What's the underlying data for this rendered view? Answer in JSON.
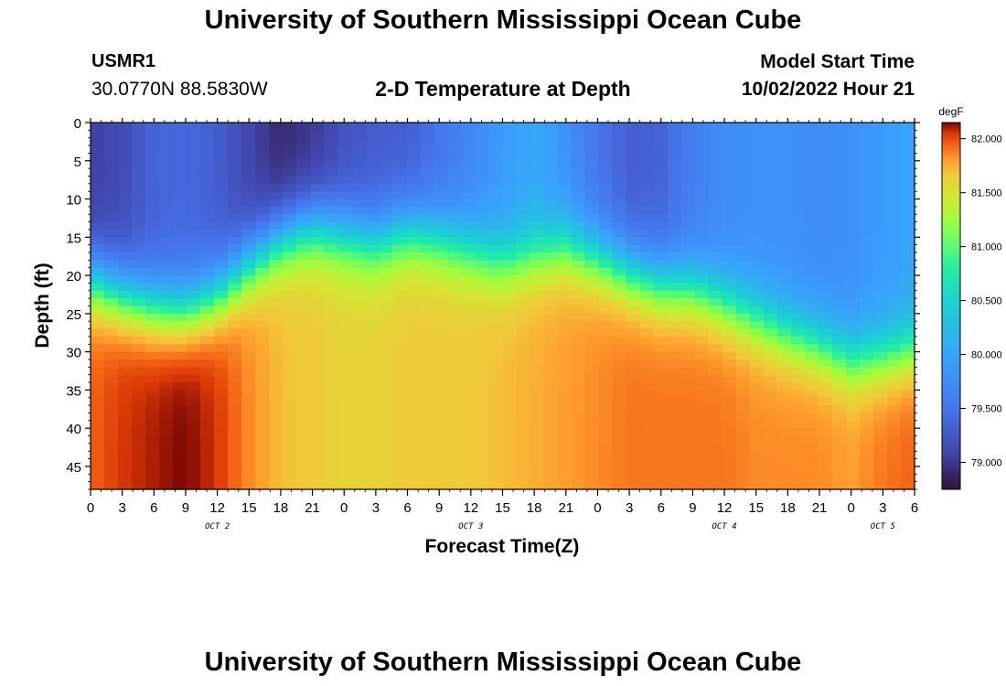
{
  "header": {
    "title": "University of Southern Mississippi Ocean Cube",
    "station_id": "USMR1",
    "station_coords": "30.0770N  88.5830W",
    "subtitle": "2-D Temperature at Depth",
    "model_start_label": "Model Start Time",
    "model_start_value": "10/02/2022 Hour 21"
  },
  "footer": {
    "title": "University of Southern Mississippi Ocean Cube"
  },
  "chart_data": {
    "type": "heatmap",
    "title": "2-D Temperature at Depth",
    "xlabel": "Forecast Time(Z)",
    "ylabel": "Depth (ft)",
    "x_ticks": [
      "0",
      "3",
      "6",
      "9",
      "12",
      "15",
      "18",
      "21",
      "0",
      "3",
      "6",
      "9",
      "12",
      "15",
      "18",
      "21",
      "0",
      "3",
      "6",
      "9",
      "12",
      "15",
      "18",
      "21",
      "0",
      "3",
      "6"
    ],
    "x_hours_range": [
      0,
      78
    ],
    "date_labels": [
      {
        "text": "OCT 2",
        "hour": 12
      },
      {
        "text": "OCT 3",
        "hour": 36
      },
      {
        "text": "OCT 4",
        "hour": 60
      },
      {
        "text": "OCT 5",
        "hour": 75
      }
    ],
    "y_ticks": [
      0,
      5,
      10,
      15,
      20,
      25,
      30,
      35,
      40,
      45
    ],
    "ylim": [
      0,
      48
    ],
    "colorbar": {
      "unit": "degF",
      "min": 78.75,
      "max": 82.15,
      "ticks": [
        "79.000",
        "79.500",
        "80.000",
        "80.500",
        "81.000",
        "81.500",
        "82.000"
      ]
    },
    "thermocline_depth_ft": {
      "hours": [
        0,
        3,
        6,
        9,
        12,
        15,
        18,
        21,
        24,
        27,
        30,
        33,
        36,
        39,
        42,
        45,
        48,
        51,
        54,
        57,
        60,
        63,
        66,
        69,
        72,
        75,
        78
      ],
      "values": [
        20.5,
        22.5,
        24.0,
        24.5,
        22.5,
        18.5,
        15.0,
        13.5,
        14.5,
        15.5,
        14.0,
        15.0,
        16.5,
        18.0,
        17.0,
        16.0,
        17.5,
        19.5,
        21.0,
        21.5,
        23.5,
        25.5,
        27.5,
        29.0,
        31.0,
        30.5,
        29.5
      ]
    },
    "surface_temp_degF": {
      "hours": [
        0,
        3,
        6,
        9,
        12,
        15,
        18,
        21,
        24,
        27,
        30,
        33,
        36,
        39,
        42,
        45,
        48,
        51,
        54,
        57,
        60,
        63,
        66,
        69,
        72,
        75,
        78
      ],
      "values": [
        79.05,
        79.15,
        79.35,
        79.4,
        79.3,
        79.1,
        78.9,
        79.0,
        79.2,
        79.3,
        79.3,
        79.5,
        79.7,
        79.9,
        80.05,
        79.8,
        79.5,
        79.3,
        79.35,
        79.6,
        79.75,
        79.8,
        79.8,
        79.75,
        79.8,
        79.9,
        80.0
      ]
    },
    "bottom_temp_degF": {
      "hours": [
        0,
        3,
        6,
        9,
        12,
        15,
        18,
        21,
        24,
        27,
        30,
        33,
        36,
        39,
        42,
        45,
        48,
        51,
        54,
        57,
        60,
        63,
        66,
        69,
        72,
        75,
        78
      ],
      "values": [
        81.95,
        82.05,
        82.1,
        82.15,
        82.05,
        81.85,
        81.7,
        81.65,
        81.6,
        81.6,
        81.65,
        81.65,
        81.65,
        81.7,
        81.75,
        81.8,
        81.85,
        81.9,
        81.9,
        81.9,
        81.9,
        81.85,
        81.85,
        81.85,
        81.8,
        81.9,
        81.95
      ]
    }
  }
}
